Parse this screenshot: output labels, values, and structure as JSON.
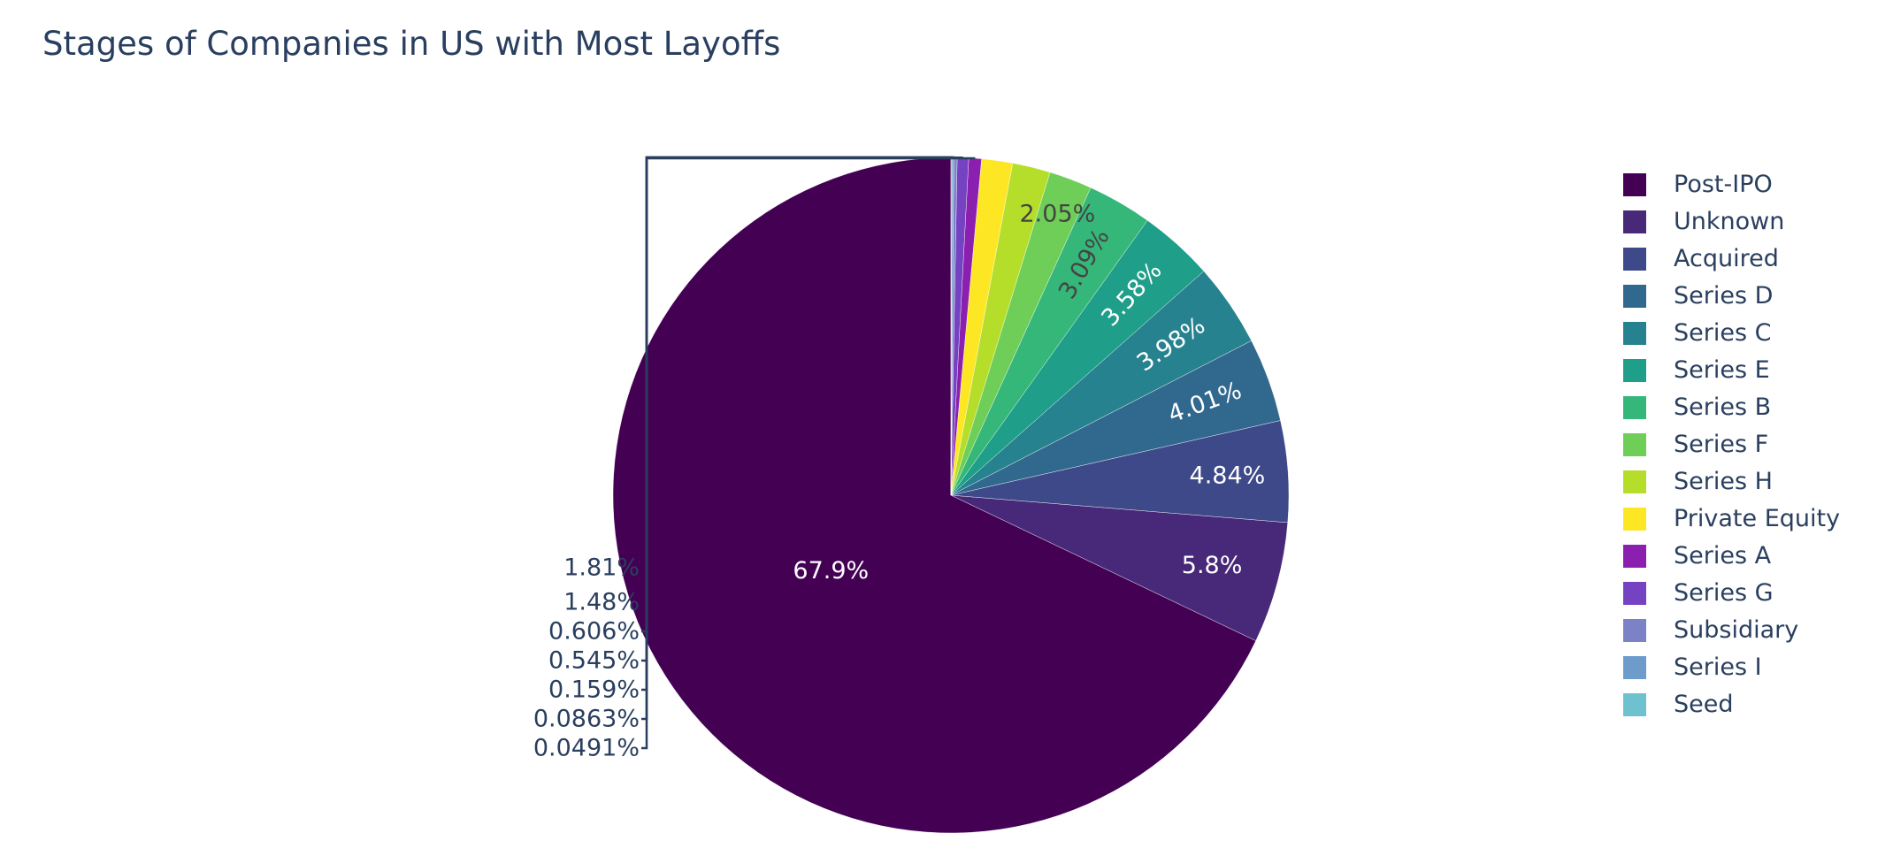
{
  "chart_data": {
    "type": "pie",
    "title": "Stages of Companies in US with Most Layoffs",
    "slices": [
      {
        "label": "Post-IPO",
        "value": 67.9,
        "display": "67.9%",
        "color": "#440154"
      },
      {
        "label": "Unknown",
        "value": 5.8,
        "display": "5.8%",
        "color": "#482878"
      },
      {
        "label": "Acquired",
        "value": 4.84,
        "display": "4.84%",
        "color": "#3e4989"
      },
      {
        "label": "Series D",
        "value": 4.01,
        "display": "4.01%",
        "color": "#31688e"
      },
      {
        "label": "Series C",
        "value": 3.98,
        "display": "3.98%",
        "color": "#26828e"
      },
      {
        "label": "Series E",
        "value": 3.58,
        "display": "3.58%",
        "color": "#1f9e89"
      },
      {
        "label": "Series B",
        "value": 3.09,
        "display": "3.09%",
        "color": "#35b779"
      },
      {
        "label": "Series F",
        "value": 2.05,
        "display": "2.05%",
        "color": "#6ece58"
      },
      {
        "label": "Series H",
        "value": 1.81,
        "display": "1.81%",
        "color": "#b5de2b"
      },
      {
        "label": "Private Equity",
        "value": 1.48,
        "display": "1.48%",
        "color": "#fde725"
      },
      {
        "label": "Series A",
        "value": 0.606,
        "display": "0.606%",
        "color": "#8b1fb0"
      },
      {
        "label": "Series G",
        "value": 0.545,
        "display": "0.545%",
        "color": "#7542c2"
      },
      {
        "label": "Subsidiary",
        "value": 0.159,
        "display": "0.159%",
        "color": "#7b82c6"
      },
      {
        "label": "Series I",
        "value": 0.0863,
        "display": "0.0863%",
        "color": "#6d9ccc"
      },
      {
        "label": "Seed",
        "value": 0.0491,
        "display": "0.0491%",
        "color": "#6ec1cf"
      }
    ],
    "direction": "counterclockwise",
    "start_angle": "12 o'clock",
    "legend_position": "right"
  }
}
